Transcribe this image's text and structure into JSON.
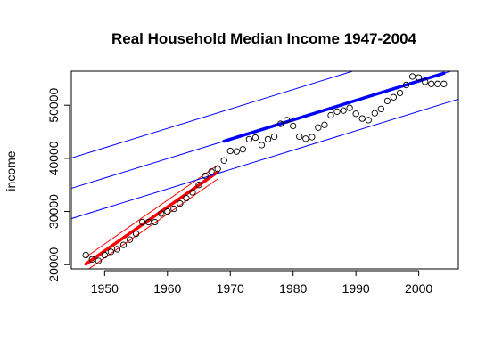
{
  "chart_data": {
    "type": "scatter",
    "title": "Real Household Median Income 1947-2004",
    "xlabel": "",
    "ylabel": "income",
    "xlim": [
      1944.7,
      2006.3
    ],
    "ylim": [
      19200,
      56400
    ],
    "xticks": [
      1950,
      1960,
      1970,
      1980,
      1990,
      2000
    ],
    "yticks": [
      20000,
      30000,
      40000,
      50000
    ],
    "grid": false,
    "points": {
      "x": [
        1947,
        1948,
        1949,
        1950,
        1951,
        1952,
        1953,
        1954,
        1955,
        1956,
        1957,
        1958,
        1959,
        1960,
        1961,
        1962,
        1963,
        1964,
        1965,
        1966,
        1967,
        1968,
        1969,
        1970,
        1971,
        1972,
        1973,
        1974,
        1975,
        1976,
        1977,
        1978,
        1979,
        1980,
        1981,
        1982,
        1983,
        1984,
        1985,
        1986,
        1987,
        1988,
        1989,
        1990,
        1991,
        1992,
        1993,
        1994,
        1995,
        1996,
        1997,
        1998,
        1999,
        2000,
        2001,
        2002,
        2003,
        2004
      ],
      "y": [
        21800,
        21000,
        20700,
        21800,
        22400,
        22900,
        23700,
        24700,
        25800,
        28000,
        28000,
        28000,
        29600,
        30000,
        30500,
        31500,
        32500,
        33600,
        35000,
        36700,
        37500,
        38000,
        39600,
        41400,
        41300,
        41700,
        43600,
        43900,
        42500,
        43600,
        44100,
        46500,
        47200,
        46100,
        44100,
        43700,
        44000,
        45800,
        46300,
        48100,
        48800,
        49000,
        49500,
        48400,
        47500,
        47200,
        48500,
        49300,
        50800,
        51500,
        52300,
        53800,
        55400,
        55200,
        54400,
        54000,
        54000,
        54000
      ]
    },
    "fits": [
      {
        "color": "#ff0000",
        "x_range": [
          1947,
          1968
        ],
        "intercept_at_1947": 20100,
        "slope": 825,
        "ci_halfwidth": 1300,
        "thick_x_range": [
          1947,
          1968
        ]
      },
      {
        "color": "#0000ff",
        "x_range": [
          1941,
          2007
        ],
        "intercept_at_1947": 35200,
        "slope": 365,
        "ci_halfwidth": 5700,
        "thick_x_range": [
          1969,
          2004
        ]
      }
    ]
  }
}
